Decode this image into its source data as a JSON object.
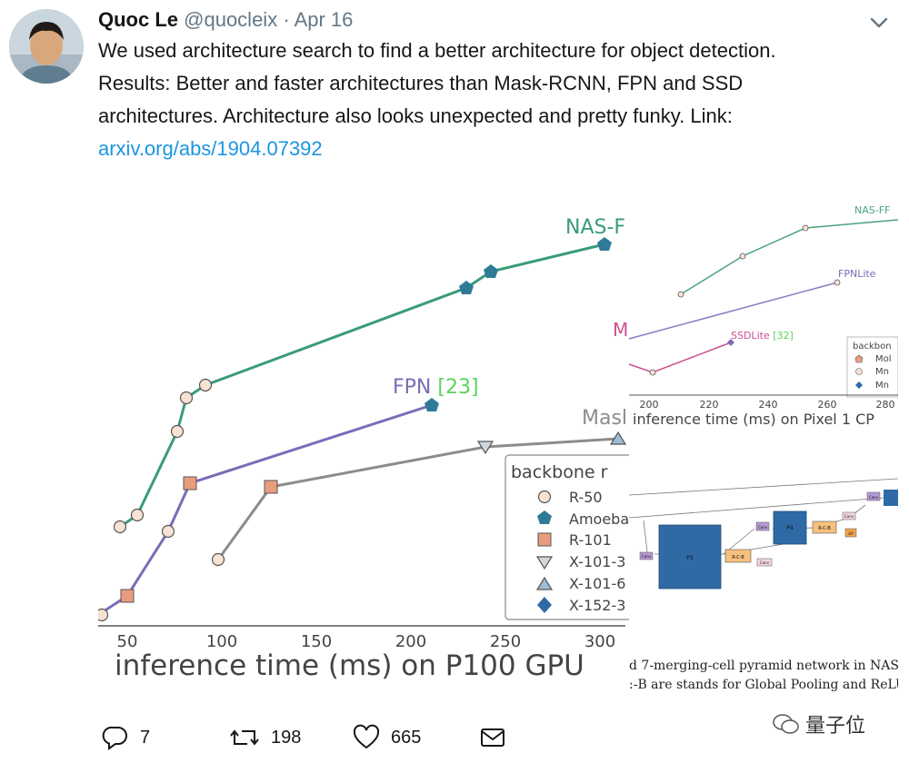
{
  "tweet": {
    "author_name": "Quoc Le",
    "handle": "@quocleix",
    "separator": "·",
    "date": "Apr 16",
    "text_lines": [
      "We used architecture search to find a better architecture for object detection.",
      "Results: Better and faster architectures than Mask-RCNN, FPN and SSD",
      "architectures. Architecture also looks unexpected and pretty funky. Link:"
    ],
    "link_text": "arxiv.org/abs/1904.07392"
  },
  "media": {
    "left_chart": {
      "xlabel": "inference time (ms) on P100 GPU",
      "x_ticks": [
        "50",
        "100",
        "150",
        "200",
        "250",
        "300"
      ],
      "label_nas": "NAS-F",
      "label_fpn": "FPN",
      "label_fpn_ref": "[23]",
      "label_mask": "Masl",
      "legend_title": "backbone r",
      "legend_items": [
        "R-50",
        "Amoeba",
        "R-101",
        "X-101-3",
        "X-101-6",
        "X-152-3"
      ]
    },
    "right_chart": {
      "label_nas": "NAS-FF",
      "label_fpnlite": "FPNLite",
      "label_ssdlite": "SSDLite",
      "label_ssdlite_ref": "[32]",
      "label_m": "M",
      "xlabel": "inference time (ms) on Pixel 1 CP",
      "x_ticks": [
        "200",
        "220",
        "240",
        "260",
        "280"
      ],
      "legend_title": "backbon",
      "legend_items": [
        "Mol",
        "Mn",
        "Mn"
      ]
    },
    "diagram": {
      "nodes": [
        "P3",
        "P4",
        "R-C-B",
        "R-C-B",
        "Conv",
        "Conv",
        "Conv",
        "Conv",
        "GP",
        "Conv"
      ],
      "caption_lines": [
        "d 7-merging-cell pyramid network in NAS-",
        ":-B are stands for Global Pooling and ReLU"
      ]
    }
  },
  "watermark": {
    "text": "量子位"
  },
  "actions": {
    "replies": "7",
    "retweets": "198",
    "likes": "665"
  },
  "colors": {
    "green": "#3a9b79",
    "purple": "#7b6cb8",
    "gray": "#8c8c8c",
    "salmon": "#e79d7d",
    "link": "#1b95e0",
    "teal_marker": "#2f7b97"
  },
  "icons": [
    "avatar-photo",
    "chevron-down-icon",
    "reply-icon",
    "retweet-icon",
    "like-icon",
    "message-icon",
    "wechat-icon"
  ]
}
